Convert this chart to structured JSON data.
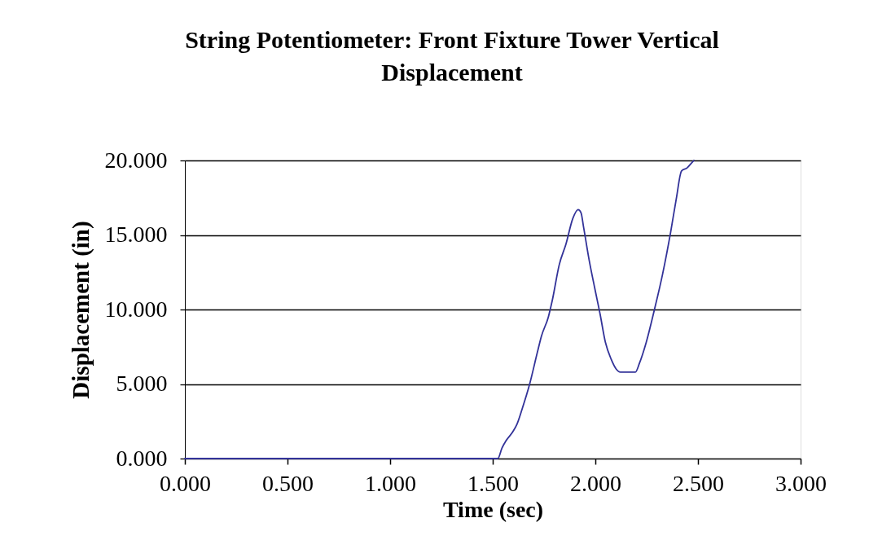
{
  "chart_data": {
    "type": "line",
    "title": "String Potentiometer: Front Fixture Tower Vertical Displacement",
    "xlabel": "Time (sec)",
    "ylabel": "Displacement (in)",
    "x": [
      0,
      1.525,
      1.545,
      1.565,
      1.598,
      1.618,
      1.645,
      1.678,
      1.717,
      1.737,
      1.771,
      1.79,
      1.824,
      1.857,
      1.89,
      1.916,
      1.93,
      1.943,
      1.97,
      1.996,
      2.023,
      2.049,
      2.076,
      2.102,
      2.122,
      2.195,
      2.215,
      2.248,
      2.288,
      2.328,
      2.367,
      2.394,
      2.42,
      2.447,
      2.467,
      2.48
    ],
    "series": [
      {
        "color": "#333399",
        "values": [
          0,
          0,
          0.7,
          1.2,
          1.8,
          2.3,
          3.4,
          4.9,
          7.1,
          8.2,
          9.5,
          10.6,
          13.0,
          14.4,
          16.1,
          16.7,
          16.5,
          15.5,
          13.3,
          11.5,
          9.7,
          7.8,
          6.7,
          6.0,
          5.8,
          5.8,
          6.4,
          7.8,
          10.0,
          12.4,
          15.2,
          17.4,
          19.3,
          19.5,
          19.8,
          20
        ]
      }
    ],
    "xlim": [
      0,
      3
    ],
    "ylim": [
      0,
      20
    ],
    "xticks": [
      {
        "value": 0,
        "label": "0.000"
      },
      {
        "value": 0.5,
        "label": "0.500"
      },
      {
        "value": 1,
        "label": "1.000"
      },
      {
        "value": 1.5,
        "label": "1.500"
      },
      {
        "value": 2,
        "label": "2.000"
      },
      {
        "value": 2.5,
        "label": "2.500"
      },
      {
        "value": 3,
        "label": "3.000"
      }
    ],
    "yticks": [
      {
        "value": 0,
        "label": "0.000"
      },
      {
        "value": 5,
        "label": "5.000"
      },
      {
        "value": 10,
        "label": "10.000"
      },
      {
        "value": 15,
        "label": "15.000"
      },
      {
        "value": 20,
        "label": "20.000"
      }
    ],
    "grid": "y",
    "legend": false,
    "marker": "none",
    "line_style": "solid"
  }
}
